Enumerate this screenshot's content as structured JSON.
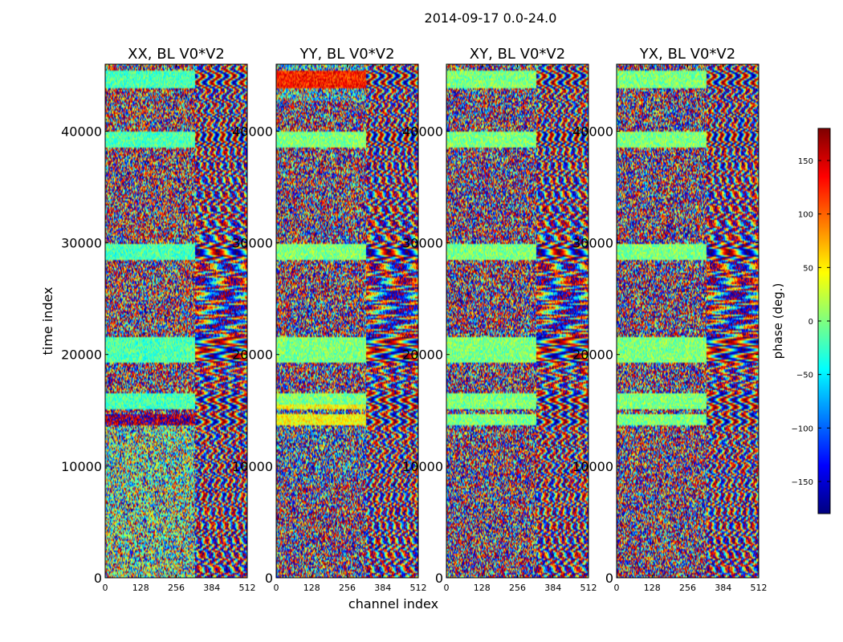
{
  "chart_data": {
    "type": "heatmap",
    "title": "2014-09-17 0.0-24.0",
    "xlabel": "channel index",
    "ylabel": "time index",
    "xlim": [
      0,
      512
    ],
    "ylim": [
      0,
      46000
    ],
    "x_ticks": [
      0,
      128,
      256,
      384,
      512
    ],
    "x_tick_labels": [
      "0",
      "128",
      "256",
      "384",
      "512"
    ],
    "y_ticks": [
      0,
      10000,
      20000,
      30000,
      40000
    ],
    "y_tick_labels": [
      "0",
      "10000",
      "20000",
      "30000",
      "40000"
    ],
    "panels": [
      {
        "title": "XX, BL V0*V2",
        "pol": "XX"
      },
      {
        "title": "YY, BL V0*V2",
        "pol": "YY"
      },
      {
        "title": "XY, BL V0*V2",
        "pol": "XY"
      },
      {
        "title": "YX, BL V0*V2",
        "pol": "YX"
      }
    ],
    "colorbar": {
      "label": "phase (deg.)",
      "range": [
        -180,
        180
      ],
      "ticks": [
        -150,
        -100,
        -50,
        0,
        50,
        100,
        150
      ],
      "tick_labels": [
        "−150",
        "−100",
        "−50",
        "0",
        "50",
        "100",
        "150"
      ],
      "colormap": [
        "#00007f",
        "#0000ff",
        "#007fff",
        "#00ffff",
        "#7fff7f",
        "#ffff00",
        "#ff7f00",
        "#ff0000",
        "#7f0000"
      ]
    }
  }
}
